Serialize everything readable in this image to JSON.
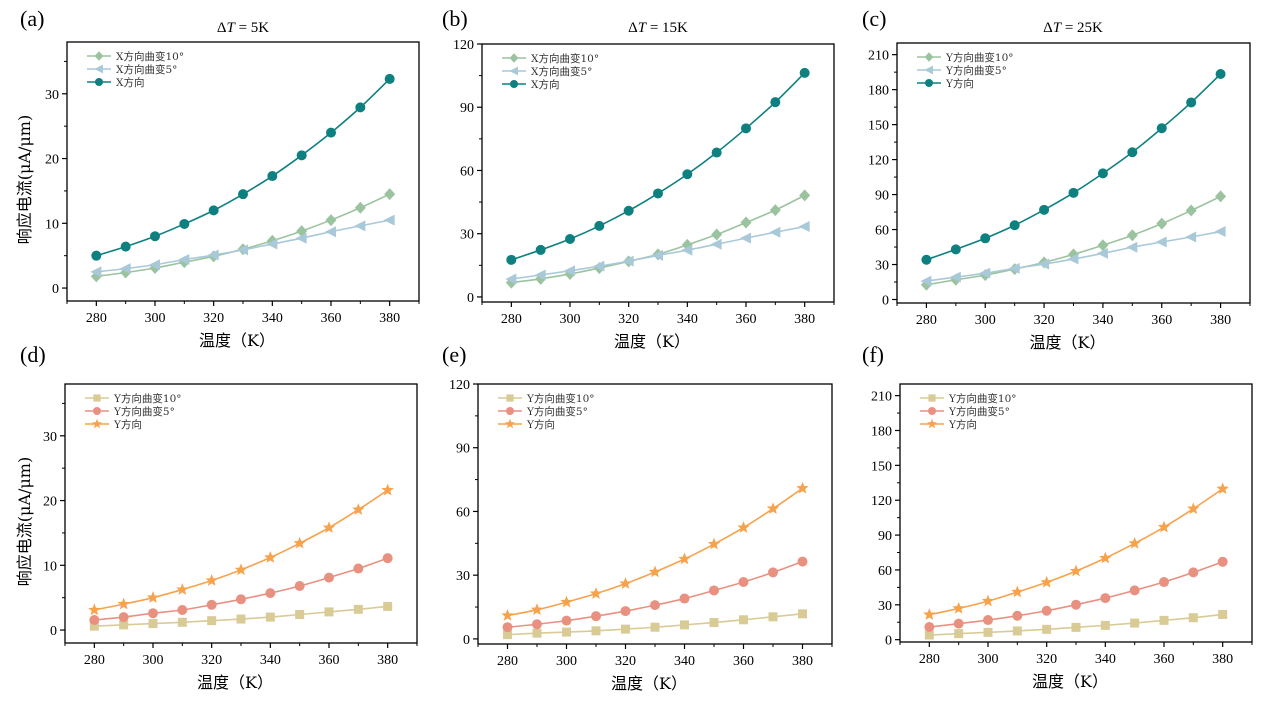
{
  "figure": {
    "panel_labels": [
      "(a)",
      "(b)",
      "(c)",
      "(d)",
      "(e)",
      "(f)"
    ]
  },
  "chart_data": [
    {
      "id": "a",
      "type": "line",
      "panel_label": "(a)",
      "title": "ΔT = 5K",
      "title_parts": {
        "delta": "Δ",
        "var": "T",
        "rest": " = 5K"
      },
      "xlabel": "温度（K）",
      "ylabel": "响应电流(μA/μm)",
      "x": [
        280,
        290,
        300,
        310,
        320,
        330,
        340,
        350,
        360,
        370,
        380
      ],
      "xlim": [
        270,
        390
      ],
      "ylim": [
        -2,
        38
      ],
      "xticks": [
        280,
        300,
        320,
        340,
        360,
        380
      ],
      "xminor": [
        270,
        290,
        310,
        330,
        350,
        370,
        390
      ],
      "yticks": [
        0,
        10,
        20,
        30
      ],
      "yminor": [
        5,
        15,
        25,
        35
      ],
      "grid": false,
      "legend": "top-left",
      "series": [
        {
          "name": "X方向曲变10°",
          "color": "#9cc3a0",
          "marker": "diamond",
          "values": [
            1.8,
            2.4,
            3.1,
            4.0,
            4.9,
            6.0,
            7.3,
            8.8,
            10.5,
            12.4,
            14.5
          ]
        },
        {
          "name": "X方向曲变5°",
          "color": "#a9c9d9",
          "marker": "triangle-left",
          "values": [
            2.5,
            3.0,
            3.6,
            4.4,
            5.1,
            5.9,
            6.8,
            7.7,
            8.7,
            9.6,
            10.5
          ]
        },
        {
          "name": "X方向",
          "color": "#0e8080",
          "marker": "circle",
          "values": [
            5.0,
            6.4,
            8.0,
            9.9,
            12.0,
            14.5,
            17.3,
            20.5,
            24.0,
            27.9,
            32.3
          ]
        }
      ]
    },
    {
      "id": "b",
      "type": "line",
      "panel_label": "(b)",
      "title": "ΔT = 15K",
      "title_parts": {
        "delta": "Δ",
        "var": "T",
        "rest": " = 15K"
      },
      "xlabel": "温度（K）",
      "ylabel": "",
      "x": [
        280,
        290,
        300,
        310,
        320,
        330,
        340,
        350,
        360,
        370,
        380
      ],
      "xlim": [
        270,
        390
      ],
      "ylim": [
        -2.4,
        120
      ],
      "xticks": [
        280,
        300,
        320,
        340,
        360,
        380
      ],
      "xminor": [
        270,
        290,
        310,
        330,
        350,
        370,
        390
      ],
      "yticks": [
        0,
        30,
        60,
        90,
        120
      ],
      "yminor": [
        15,
        45,
        75,
        105
      ],
      "grid": false,
      "legend": "top-left",
      "series": [
        {
          "name": "X方向曲变10°",
          "color": "#9cc3a0",
          "marker": "diamond",
          "values": [
            6.8,
            8.6,
            10.9,
            13.7,
            16.9,
            20.2,
            24.7,
            29.6,
            35.3,
            41.2,
            48.2
          ]
        },
        {
          "name": "X方向曲变5°",
          "color": "#a9c9d9",
          "marker": "triangle-left",
          "values": [
            8.5,
            10.4,
            12.4,
            14.6,
            17.0,
            19.7,
            22.2,
            25.0,
            27.9,
            30.7,
            33.4
          ]
        },
        {
          "name": "X方向",
          "color": "#0e8080",
          "marker": "circle",
          "values": [
            17.6,
            22.3,
            27.5,
            33.7,
            40.9,
            49.1,
            58.2,
            68.5,
            80.0,
            92.4,
            106.3
          ]
        }
      ]
    },
    {
      "id": "c",
      "type": "line",
      "panel_label": "(c)",
      "title": "ΔT = 25K",
      "title_parts": {
        "delta": "Δ",
        "var": "T",
        "rest": " = 25K"
      },
      "xlabel": "温度（K）",
      "ylabel": "",
      "x": [
        280,
        290,
        300,
        310,
        320,
        330,
        340,
        350,
        360,
        370,
        380
      ],
      "xlim": [
        270,
        390
      ],
      "ylim": [
        -3,
        220
      ],
      "xticks": [
        280,
        300,
        320,
        340,
        360,
        380
      ],
      "xminor": [
        270,
        290,
        310,
        330,
        350,
        370,
        390
      ],
      "yticks": [
        0,
        30,
        60,
        90,
        120,
        150,
        180,
        210
      ],
      "yminor": [
        15,
        45,
        75,
        105,
        135,
        165,
        195
      ],
      "grid": false,
      "legend": "top-left",
      "series": [
        {
          "name": "Y方向曲变10°",
          "color": "#9cc3a0",
          "marker": "diamond",
          "values": [
            12.6,
            16.9,
            20.9,
            26.1,
            31.8,
            38.7,
            46.5,
            55.1,
            65.1,
            76.3,
            88.4
          ]
        },
        {
          "name": "Y方向曲变5°",
          "color": "#a9c9d9",
          "marker": "triangle-left",
          "values": [
            15.8,
            19.2,
            22.6,
            26.7,
            30.4,
            34.7,
            39.6,
            44.8,
            49.3,
            53.6,
            58.3
          ]
        },
        {
          "name": "Y方向",
          "color": "#0e8080",
          "marker": "circle",
          "values": [
            34.1,
            43.0,
            52.5,
            63.7,
            76.9,
            91.5,
            108.2,
            126.3,
            146.9,
            169.0,
            193.4
          ]
        }
      ]
    },
    {
      "id": "d",
      "type": "line",
      "panel_label": "(d)",
      "title": "",
      "xlabel": "温度（K）",
      "ylabel": "响应电流(μA/μm)",
      "x": [
        280,
        290,
        300,
        310,
        320,
        330,
        340,
        350,
        360,
        370,
        380
      ],
      "xlim": [
        270,
        390
      ],
      "ylim": [
        -2,
        38
      ],
      "xticks": [
        280,
        300,
        320,
        340,
        360,
        380
      ],
      "xminor": [
        270,
        290,
        310,
        330,
        350,
        370,
        390
      ],
      "yticks": [
        0,
        10,
        20,
        30
      ],
      "yminor": [
        5,
        15,
        25,
        35
      ],
      "grid": false,
      "legend": "top-left",
      "series": [
        {
          "name": "Y方向曲变10°",
          "color": "#d8cb95",
          "marker": "square",
          "values": [
            0.6,
            0.8,
            1.0,
            1.2,
            1.45,
            1.7,
            2.0,
            2.4,
            2.8,
            3.2,
            3.65
          ]
        },
        {
          "name": "Y方向曲变5°",
          "color": "#e99181",
          "marker": "circle",
          "values": [
            1.55,
            2.0,
            2.6,
            3.1,
            3.9,
            4.75,
            5.7,
            6.8,
            8.1,
            9.5,
            11.1
          ]
        },
        {
          "name": "Y方向",
          "color": "#f7a24c",
          "marker": "star",
          "values": [
            3.1,
            4.0,
            5.0,
            6.25,
            7.65,
            9.3,
            11.2,
            13.4,
            15.8,
            18.6,
            21.6
          ]
        }
      ]
    },
    {
      "id": "e",
      "type": "line",
      "panel_label": "(e)",
      "title": "",
      "xlabel": "温度（K）",
      "ylabel": "",
      "x": [
        280,
        290,
        300,
        310,
        320,
        330,
        340,
        350,
        360,
        370,
        380
      ],
      "xlim": [
        270,
        390
      ],
      "ylim": [
        -2.4,
        120
      ],
      "xticks": [
        280,
        300,
        320,
        340,
        360,
        380
      ],
      "xminor": [
        270,
        290,
        310,
        330,
        350,
        370,
        390
      ],
      "yticks": [
        0,
        30,
        60,
        90,
        120
      ],
      "yminor": [
        15,
        45,
        75,
        105
      ],
      "grid": false,
      "legend": "top-left",
      "series": [
        {
          "name": "Y方向曲变10°",
          "color": "#d8cb95",
          "marker": "square",
          "values": [
            2.0,
            2.7,
            3.2,
            3.8,
            4.6,
            5.5,
            6.6,
            7.7,
            9.0,
            10.4,
            11.8
          ]
        },
        {
          "name": "Y方向曲变5°",
          "color": "#e99181",
          "marker": "circle",
          "values": [
            5.5,
            6.9,
            8.6,
            10.7,
            13.1,
            15.9,
            19.0,
            22.8,
            26.8,
            31.3,
            36.4
          ]
        },
        {
          "name": "Y方向",
          "color": "#f7a24c",
          "marker": "star",
          "values": [
            11.0,
            13.7,
            17.3,
            21.3,
            26.0,
            31.5,
            37.6,
            44.6,
            52.4,
            61.3,
            70.9
          ]
        }
      ]
    },
    {
      "id": "f",
      "type": "line",
      "panel_label": "(f)",
      "title": "",
      "xlabel": "温度（K）",
      "ylabel": "",
      "x": [
        280,
        290,
        300,
        310,
        320,
        330,
        340,
        350,
        360,
        370,
        380
      ],
      "xlim": [
        270,
        390
      ],
      "ylim": [
        -2,
        220
      ],
      "xticks": [
        280,
        300,
        320,
        340,
        360,
        380
      ],
      "xminor": [
        270,
        290,
        310,
        330,
        350,
        370,
        390
      ],
      "yticks": [
        0,
        30,
        60,
        90,
        120,
        150,
        180,
        210
      ],
      "yminor": [
        15,
        45,
        75,
        105,
        135,
        165,
        195
      ],
      "grid": false,
      "legend": "top-left",
      "series": [
        {
          "name": "Y方向曲变10°",
          "color": "#d8cb95",
          "marker": "square",
          "values": [
            4.0,
            5.2,
            6.3,
            7.5,
            8.9,
            10.6,
            12.3,
            14.3,
            16.6,
            18.9,
            21.7
          ]
        },
        {
          "name": "Y方向曲变5°",
          "color": "#e99181",
          "marker": "circle",
          "values": [
            10.9,
            13.8,
            16.9,
            20.6,
            24.9,
            30.1,
            35.8,
            42.4,
            49.6,
            57.9,
            67.0
          ]
        },
        {
          "name": "Y方向",
          "color": "#f7a24c",
          "marker": "star",
          "values": [
            21.5,
            26.9,
            33.2,
            41.0,
            49.3,
            59.0,
            70.2,
            82.8,
            96.8,
            112.6,
            129.8
          ]
        }
      ]
    }
  ]
}
